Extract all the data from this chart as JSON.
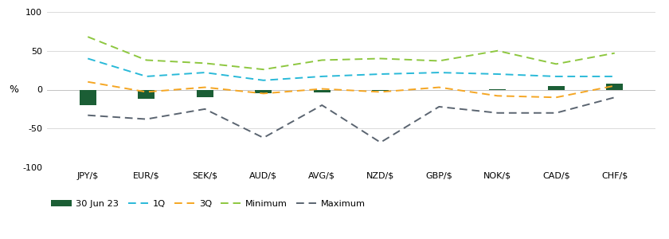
{
  "categories": [
    "JPY/$",
    "EUR/$",
    "SEK/$",
    "AUD/$",
    "AVG/$",
    "NZD/$",
    "GBP/$",
    "NOK/$",
    "CAD/$",
    "CHF/$"
  ],
  "bar_30jun23": [
    -20,
    -12,
    -10,
    -5,
    -4,
    -2,
    0,
    1,
    5,
    8
  ],
  "line_1Q": [
    40,
    17,
    22,
    12,
    17,
    20,
    22,
    20,
    17,
    17
  ],
  "line_3Q": [
    10,
    -3,
    3,
    -5,
    1,
    -3,
    3,
    -8,
    -10,
    5
  ],
  "line_minimum": [
    68,
    38,
    34,
    26,
    38,
    40,
    37,
    50,
    33,
    47
  ],
  "line_maximum": [
    -33,
    -38,
    -25,
    -62,
    -20,
    -68,
    -22,
    -30,
    -30,
    -10
  ],
  "bar_color": "#1b5e35",
  "color_1Q": "#29b9d8",
  "color_3Q": "#f5a623",
  "color_minimum": "#8dc73f",
  "color_maximum": "#5a6470",
  "ylabel": "%",
  "ylim": [
    -100,
    100
  ],
  "yticks": [
    -100,
    -50,
    0,
    50,
    100
  ],
  "bg_color": "#ffffff",
  "grid_color": "#d5d5d5",
  "legend_labels": [
    "30 Jun 23",
    "1Q",
    "3Q",
    "Minimum",
    "Maximum"
  ]
}
